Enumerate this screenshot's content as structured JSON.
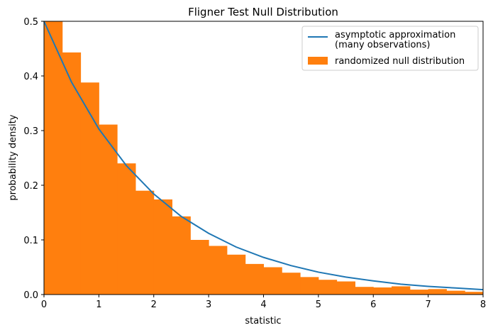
{
  "chart_data": {
    "type": "bar",
    "title": "Fligner Test Null Distribution",
    "xlabel": "statistic",
    "ylabel": "probability density",
    "xlim": [
      0,
      8
    ],
    "ylim": [
      0,
      0.5
    ],
    "grid": false,
    "legend_position": "top-right",
    "x_ticks": [
      0,
      1,
      2,
      3,
      4,
      5,
      6,
      7,
      8
    ],
    "x_tick_labels": [
      "0",
      "1",
      "2",
      "3",
      "4",
      "5",
      "6",
      "7",
      "8"
    ],
    "y_ticks": [
      0.0,
      0.1,
      0.2,
      0.3,
      0.4,
      0.5
    ],
    "y_tick_labels": [
      "0.0",
      "0.1",
      "0.2",
      "0.3",
      "0.4",
      "0.5"
    ],
    "series": [
      {
        "name": "asymptotic approximation\n(many observations)",
        "legend_lines": [
          "asymptotic approximation",
          "(many observations)"
        ],
        "kind": "line",
        "color": "#1f77b4",
        "function": "0.5*exp(-x/2)",
        "x": [
          0,
          0.5,
          1,
          1.5,
          2,
          2.5,
          3,
          3.5,
          4,
          4.5,
          5,
          5.5,
          6,
          6.5,
          7,
          7.5,
          8
        ],
        "values": [
          0.5,
          0.389,
          0.303,
          0.236,
          0.184,
          0.143,
          0.112,
          0.087,
          0.068,
          0.053,
          0.041,
          0.032,
          0.025,
          0.019,
          0.015,
          0.012,
          0.009
        ]
      },
      {
        "name": "randomized null distribution",
        "legend_lines": [
          "randomized null distribution"
        ],
        "kind": "histogram",
        "color": "#ff7f0e",
        "bin_edges": [
          0,
          0.333,
          0.667,
          1.0,
          1.333,
          1.667,
          2.0,
          2.333,
          2.667,
          3.0,
          3.333,
          3.667,
          4.0,
          4.333,
          4.667,
          5.0,
          5.333,
          5.667,
          6.0,
          6.333,
          6.667,
          7.0,
          7.333,
          7.667,
          8.0
        ],
        "values": [
          0.5,
          0.443,
          0.388,
          0.311,
          0.24,
          0.19,
          0.174,
          0.143,
          0.1,
          0.089,
          0.073,
          0.056,
          0.05,
          0.04,
          0.032,
          0.027,
          0.024,
          0.014,
          0.013,
          0.015,
          0.009,
          0.01,
          0.007,
          0.005
        ]
      }
    ]
  }
}
